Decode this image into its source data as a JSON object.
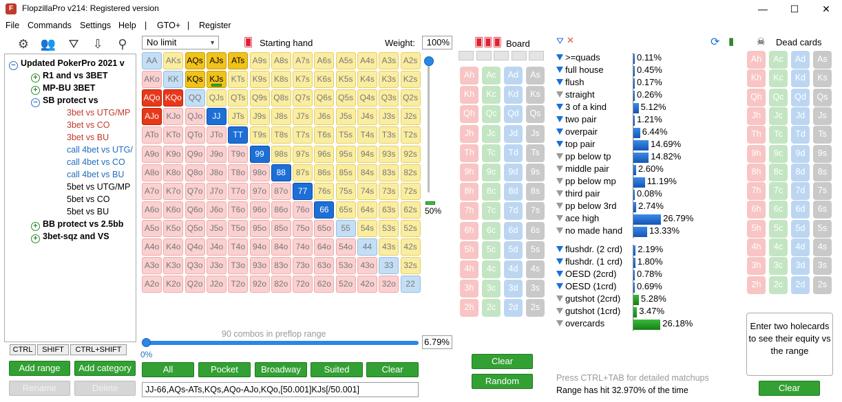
{
  "window": {
    "title": "FlopzillaPro v214: Registered version",
    "icon_text": "F",
    "min": "—",
    "max": "☐",
    "close": "✕"
  },
  "menu": [
    "File",
    "Commands",
    "Settings",
    "Help",
    "|",
    "GTO+",
    "|",
    "Register"
  ],
  "toolbar_icons": [
    "gear-icon",
    "users-icon",
    "filter-icon",
    "import-icon",
    "search-icon"
  ],
  "tree": {
    "items": [
      {
        "label": "Updated PokerPro 2021 v",
        "level": 1,
        "style": "bold",
        "toggle": "minus"
      },
      {
        "label": "R1 and vs 3BET",
        "level": 2,
        "style": "bold",
        "toggle": "plus"
      },
      {
        "label": "MP-BU 3BET",
        "level": 2,
        "style": "bold",
        "toggle": "plus"
      },
      {
        "label": "SB protect vs",
        "level": 2,
        "style": "bold",
        "toggle": "minus"
      },
      {
        "label": "3bet vs UTG/MP",
        "level": 3,
        "style": "red"
      },
      {
        "label": "3bet vs CO",
        "level": 3,
        "style": "red"
      },
      {
        "label": "3bet vs BU",
        "level": 3,
        "style": "red"
      },
      {
        "label": "call 4bet vs UTG/",
        "level": 3,
        "style": "blue"
      },
      {
        "label": "call 4bet vs CO",
        "level": 3,
        "style": "blue"
      },
      {
        "label": "call 4bet vs BU",
        "level": 3,
        "style": "blue"
      },
      {
        "label": "5bet vs UTG/MP",
        "level": 3,
        "style": "normal"
      },
      {
        "label": "5bet vs CO",
        "level": 3,
        "style": "normal"
      },
      {
        "label": "5bet vs BU",
        "level": 3,
        "style": "normal"
      },
      {
        "label": "BB protect vs 2.5bb",
        "level": 2,
        "style": "bold",
        "toggle": "plus"
      },
      {
        "label": "3bet-sqz and VS",
        "level": 2,
        "style": "bold",
        "toggle": "plus"
      }
    ],
    "modkeys": [
      "CTRL",
      "SHIFT",
      "CTRL+SHIFT"
    ],
    "buttons": {
      "add_range": "Add range",
      "add_category": "Add category",
      "rename": "Rename",
      "delete": "Delete"
    }
  },
  "range": {
    "mode": "No limit",
    "starting_hand_label": "Starting hand",
    "weight_label": "Weight:",
    "weight_value": "100%",
    "weight_slider_pct": "50%",
    "combos_label": "90 combos in preflop range",
    "slider_min": "0%",
    "range_pct": "6.79%",
    "range_text": "JJ-66,AQs-ATs,KQs,AQo-AJo,KQo,[50.001]KJs[/50.001]",
    "ranks": [
      "A",
      "K",
      "Q",
      "J",
      "T",
      "9",
      "8",
      "7",
      "6",
      "5",
      "4",
      "3",
      "2"
    ],
    "selected": [
      "AQs",
      "AJs",
      "ATs",
      "KQs",
      "AQo",
      "KQo",
      "AJo",
      "JJ",
      "TT",
      "99",
      "88",
      "77",
      "66"
    ],
    "partial": [
      "KJs"
    ],
    "buttons": [
      "All",
      "Pocket",
      "Broadway",
      "Suited",
      "Clear"
    ]
  },
  "board": {
    "label": "Board",
    "buttons": {
      "clear": "Clear",
      "random": "Random"
    }
  },
  "filters": {
    "groups": [
      [
        {
          "label": ">=quads",
          "pct": "0.11%",
          "value": 0.11,
          "icon": "blue"
        },
        {
          "label": "full house",
          "pct": "0.45%",
          "value": 0.45,
          "icon": "blue"
        },
        {
          "label": "flush",
          "pct": "0.17%",
          "value": 0.17,
          "icon": "blue"
        },
        {
          "label": "straight",
          "pct": "0.26%",
          "value": 0.26,
          "icon": "grey"
        },
        {
          "label": "3 of a kind",
          "pct": "5.12%",
          "value": 5.12,
          "icon": "blue"
        },
        {
          "label": "two pair",
          "pct": "1.21%",
          "value": 1.21,
          "icon": "blue"
        },
        {
          "label": "overpair",
          "pct": "6.44%",
          "value": 6.44,
          "icon": "blue"
        },
        {
          "label": "top pair",
          "pct": "14.69%",
          "value": 14.69,
          "icon": "blue"
        },
        {
          "label": "pp below tp",
          "pct": "14.82%",
          "value": 14.82,
          "icon": "grey"
        },
        {
          "label": "middle pair",
          "pct": "2.60%",
          "value": 2.6,
          "icon": "grey"
        },
        {
          "label": "pp below mp",
          "pct": "11.19%",
          "value": 11.19,
          "icon": "grey"
        },
        {
          "label": "third pair",
          "pct": "0.08%",
          "value": 0.08,
          "icon": "grey"
        },
        {
          "label": "pp below 3rd",
          "pct": "2.74%",
          "value": 2.74,
          "icon": "grey"
        },
        {
          "label": "ace high",
          "pct": "26.79%",
          "value": 26.79,
          "icon": "grey"
        },
        {
          "label": "no made hand",
          "pct": "13.33%",
          "value": 13.33,
          "icon": "grey"
        }
      ],
      [
        {
          "label": "flushdr. (2 crd)",
          "pct": "2.19%",
          "value": 2.19,
          "icon": "blue"
        },
        {
          "label": "flushdr. (1 crd)",
          "pct": "1.80%",
          "value": 1.8,
          "icon": "blue"
        },
        {
          "label": "OESD (2crd)",
          "pct": "0.78%",
          "value": 0.78,
          "icon": "blue"
        },
        {
          "label": "OESD (1crd)",
          "pct": "0.69%",
          "value": 0.69,
          "icon": "blue"
        },
        {
          "label": "gutshot (2crd)",
          "pct": "5.28%",
          "value": 5.28,
          "icon": "grey"
        },
        {
          "label": "gutshot (1crd)",
          "pct": "3.47%",
          "value": 3.47,
          "icon": "grey"
        },
        {
          "label": "overcards",
          "pct": "26.18%",
          "value": 26.18,
          "icon": "grey"
        }
      ]
    ],
    "hint": "Press CTRL+TAB for detailed matchups",
    "range_hit": "Range has hit 32.970% of the time"
  },
  "dead": {
    "label": "Dead cards",
    "info": "Enter two holecards to see their equity vs the range",
    "clear": "Clear"
  },
  "colors": {
    "accent_blue": "#1d6fd6",
    "button_green": "#33a033",
    "selected_suited": "#f1c21b",
    "selected_offsuit": "#e8381c"
  }
}
